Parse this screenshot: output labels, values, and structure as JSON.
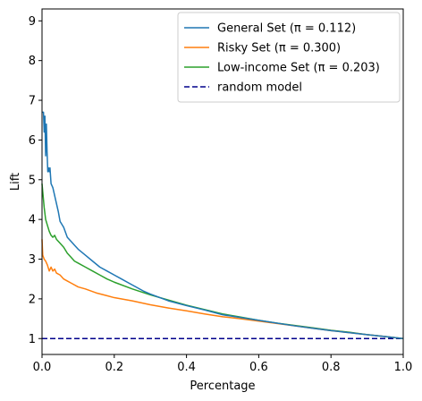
{
  "chart_data": {
    "type": "line",
    "xlabel": "Percentage",
    "ylabel": "Lift",
    "xlim": [
      0,
      1
    ],
    "ylim": [
      0.6,
      9.3
    ],
    "x_ticks": [
      "0.0",
      "0.2",
      "0.4",
      "0.6",
      "0.8",
      "1.0"
    ],
    "y_ticks": [
      "1",
      "2",
      "3",
      "4",
      "5",
      "6",
      "7",
      "8",
      "9"
    ],
    "grid": false,
    "legend_position": "top-right",
    "series": [
      {
        "name": "General Set (π = 0.112)",
        "color": "#1f77b4",
        "style": "solid",
        "points": [
          [
            0.0,
            6.7
          ],
          [
            0.004,
            6.7
          ],
          [
            0.006,
            6.2
          ],
          [
            0.008,
            6.6
          ],
          [
            0.01,
            5.6
          ],
          [
            0.012,
            6.4
          ],
          [
            0.014,
            5.7
          ],
          [
            0.016,
            5.2
          ],
          [
            0.018,
            5.3
          ],
          [
            0.02,
            5.2
          ],
          [
            0.022,
            5.3
          ],
          [
            0.025,
            4.9
          ],
          [
            0.03,
            4.8
          ],
          [
            0.035,
            4.6
          ],
          [
            0.04,
            4.4
          ],
          [
            0.045,
            4.2
          ],
          [
            0.05,
            3.95
          ],
          [
            0.06,
            3.8
          ],
          [
            0.07,
            3.55
          ],
          [
            0.08,
            3.45
          ],
          [
            0.09,
            3.35
          ],
          [
            0.1,
            3.25
          ],
          [
            0.12,
            3.1
          ],
          [
            0.14,
            2.95
          ],
          [
            0.16,
            2.8
          ],
          [
            0.18,
            2.7
          ],
          [
            0.2,
            2.6
          ],
          [
            0.22,
            2.5
          ],
          [
            0.25,
            2.35
          ],
          [
            0.28,
            2.2
          ],
          [
            0.3,
            2.12
          ],
          [
            0.35,
            1.95
          ],
          [
            0.4,
            1.83
          ],
          [
            0.45,
            1.72
          ],
          [
            0.5,
            1.6
          ],
          [
            0.55,
            1.53
          ],
          [
            0.6,
            1.46
          ],
          [
            0.65,
            1.39
          ],
          [
            0.7,
            1.32
          ],
          [
            0.75,
            1.26
          ],
          [
            0.8,
            1.2
          ],
          [
            0.85,
            1.15
          ],
          [
            0.9,
            1.1
          ],
          [
            0.95,
            1.05
          ],
          [
            1.0,
            1.0
          ]
        ]
      },
      {
        "name": "Risky Set (π = 0.300)",
        "color": "#ff7f0e",
        "style": "solid",
        "points": [
          [
            0.0,
            3.5
          ],
          [
            0.002,
            3.1
          ],
          [
            0.006,
            3.0
          ],
          [
            0.01,
            2.95
          ],
          [
            0.015,
            2.85
          ],
          [
            0.02,
            2.7
          ],
          [
            0.025,
            2.8
          ],
          [
            0.03,
            2.7
          ],
          [
            0.035,
            2.75
          ],
          [
            0.04,
            2.65
          ],
          [
            0.05,
            2.6
          ],
          [
            0.06,
            2.5
          ],
          [
            0.07,
            2.45
          ],
          [
            0.08,
            2.4
          ],
          [
            0.1,
            2.3
          ],
          [
            0.12,
            2.25
          ],
          [
            0.15,
            2.15
          ],
          [
            0.18,
            2.08
          ],
          [
            0.2,
            2.03
          ],
          [
            0.25,
            1.95
          ],
          [
            0.3,
            1.85
          ],
          [
            0.35,
            1.77
          ],
          [
            0.4,
            1.7
          ],
          [
            0.45,
            1.62
          ],
          [
            0.5,
            1.55
          ],
          [
            0.55,
            1.5
          ],
          [
            0.6,
            1.44
          ],
          [
            0.65,
            1.38
          ],
          [
            0.7,
            1.32
          ],
          [
            0.75,
            1.26
          ],
          [
            0.8,
            1.2
          ],
          [
            0.85,
            1.15
          ],
          [
            0.9,
            1.1
          ],
          [
            0.95,
            1.05
          ],
          [
            1.0,
            1.0
          ]
        ]
      },
      {
        "name": "Low-income Set (π = 0.203)",
        "color": "#2ca02c",
        "style": "solid",
        "points": [
          [
            0.0,
            4.9
          ],
          [
            0.003,
            4.6
          ],
          [
            0.006,
            4.3
          ],
          [
            0.01,
            4.0
          ],
          [
            0.015,
            3.85
          ],
          [
            0.02,
            3.7
          ],
          [
            0.025,
            3.6
          ],
          [
            0.03,
            3.55
          ],
          [
            0.035,
            3.6
          ],
          [
            0.04,
            3.5
          ],
          [
            0.05,
            3.4
          ],
          [
            0.06,
            3.3
          ],
          [
            0.07,
            3.15
          ],
          [
            0.08,
            3.05
          ],
          [
            0.09,
            2.95
          ],
          [
            0.1,
            2.9
          ],
          [
            0.12,
            2.8
          ],
          [
            0.14,
            2.7
          ],
          [
            0.16,
            2.6
          ],
          [
            0.18,
            2.5
          ],
          [
            0.2,
            2.42
          ],
          [
            0.25,
            2.25
          ],
          [
            0.3,
            2.1
          ],
          [
            0.35,
            1.97
          ],
          [
            0.4,
            1.84
          ],
          [
            0.45,
            1.73
          ],
          [
            0.5,
            1.62
          ],
          [
            0.55,
            1.54
          ],
          [
            0.6,
            1.46
          ],
          [
            0.65,
            1.39
          ],
          [
            0.7,
            1.33
          ],
          [
            0.75,
            1.27
          ],
          [
            0.8,
            1.21
          ],
          [
            0.85,
            1.16
          ],
          [
            0.9,
            1.1
          ],
          [
            0.95,
            1.05
          ],
          [
            1.0,
            1.0
          ]
        ]
      },
      {
        "name": "random model",
        "color": "#00008b",
        "style": "dashed",
        "points": [
          [
            0.0,
            1.0
          ],
          [
            1.0,
            1.0
          ]
        ]
      }
    ]
  }
}
